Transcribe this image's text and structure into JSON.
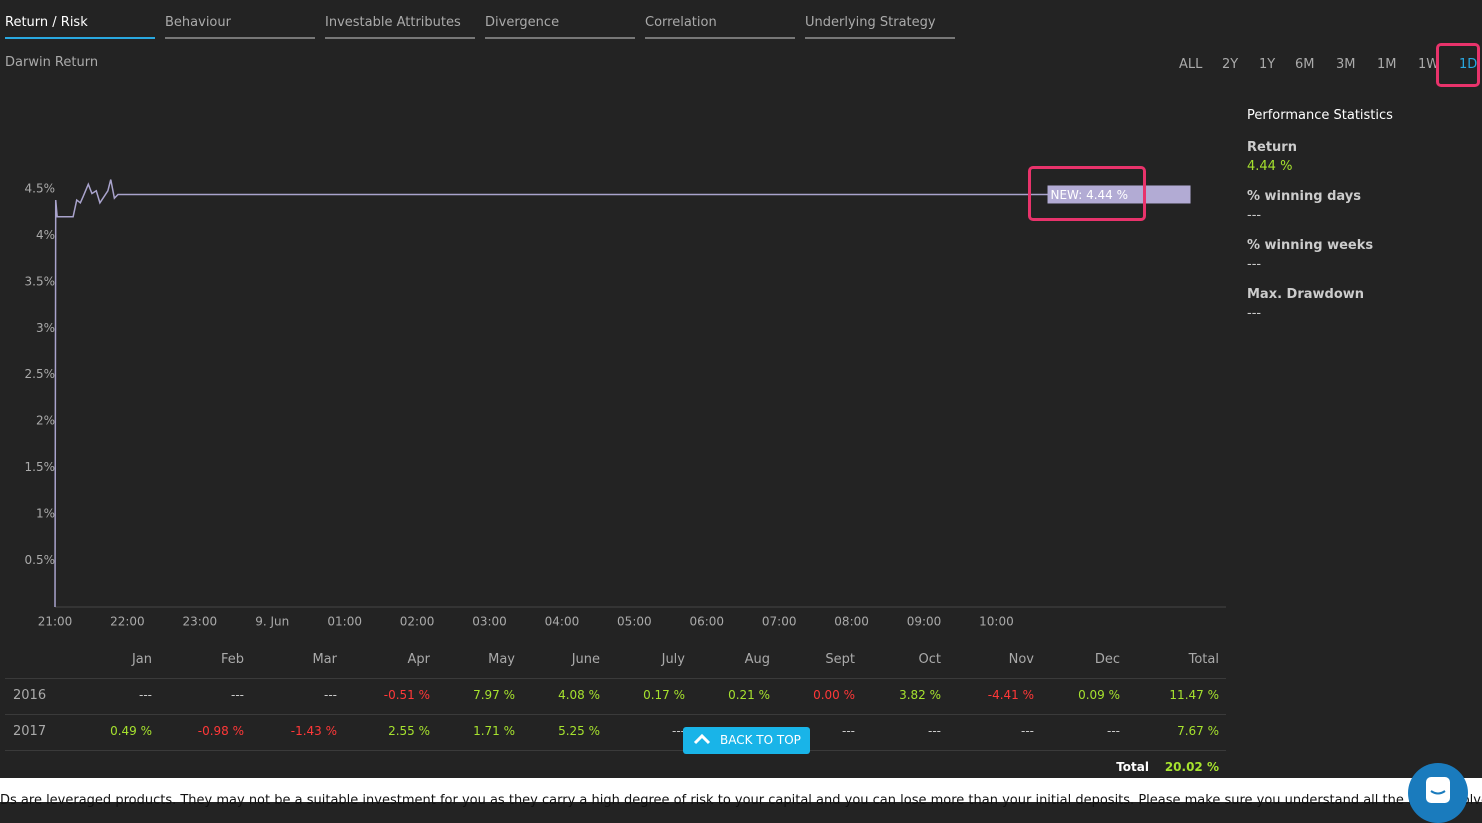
{
  "tabs": [
    {
      "label": "Return / Risk",
      "active": true
    },
    {
      "label": "Behaviour",
      "active": false
    },
    {
      "label": "Investable Attributes",
      "active": false
    },
    {
      "label": "Divergence",
      "active": false
    },
    {
      "label": "Correlation",
      "active": false
    },
    {
      "label": "Underlying Strategy",
      "active": false
    }
  ],
  "ranges": [
    {
      "label": "ALL",
      "active": false
    },
    {
      "label": "2Y",
      "active": false
    },
    {
      "label": "1Y",
      "active": false
    },
    {
      "label": "6M",
      "active": false
    },
    {
      "label": "3M",
      "active": false
    },
    {
      "label": "1M",
      "active": false
    },
    {
      "label": "1W",
      "active": false
    },
    {
      "label": "1D",
      "active": true
    }
  ],
  "chart_data": {
    "type": "line",
    "title": "Darwin Return",
    "color": "#a9a3cc",
    "x": [
      21.0,
      21.01,
      21.03,
      21.25,
      21.3,
      21.35,
      21.39,
      21.46,
      21.51,
      21.57,
      21.62,
      21.68,
      21.73,
      21.77,
      21.82,
      21.87,
      36.68
    ],
    "values": [
      0,
      4.38,
      4.2,
      4.2,
      4.38,
      4.35,
      4.42,
      4.55,
      4.45,
      4.48,
      4.35,
      4.42,
      4.48,
      4.6,
      4.4,
      4.44,
      4.44
    ],
    "xlim": [
      21,
      37.17
    ],
    "ylim": [
      0,
      5.5
    ],
    "xticks": [
      {
        "value": 21,
        "label": "21:00"
      },
      {
        "value": 22,
        "label": "22:00"
      },
      {
        "value": 23,
        "label": "23:00"
      },
      {
        "value": 24,
        "label": "9. Jun"
      },
      {
        "value": 25,
        "label": "01:00"
      },
      {
        "value": 26,
        "label": "02:00"
      },
      {
        "value": 27,
        "label": "03:00"
      },
      {
        "value": 28,
        "label": "04:00"
      },
      {
        "value": 29,
        "label": "05:00"
      },
      {
        "value": 30,
        "label": "06:00"
      },
      {
        "value": 31,
        "label": "07:00"
      },
      {
        "value": 32,
        "label": "08:00"
      },
      {
        "value": 33,
        "label": "09:00"
      },
      {
        "value": 34,
        "label": "10:00"
      }
    ],
    "yticks": [
      {
        "value": 0.5,
        "label": "0.5%"
      },
      {
        "value": 1,
        "label": "1%"
      },
      {
        "value": 1.5,
        "label": "1.5%"
      },
      {
        "value": 2,
        "label": "2%"
      },
      {
        "value": 2.5,
        "label": "2.5%"
      },
      {
        "value": 3,
        "label": "3%"
      },
      {
        "value": 3.5,
        "label": "3.5%"
      },
      {
        "value": 4,
        "label": "4%"
      },
      {
        "value": 4.5,
        "label": "4.5%"
      }
    ],
    "grid": false,
    "annotation": "NEW: 4.44 %"
  },
  "stats": {
    "title": "Performance Statistics",
    "items": [
      {
        "label": "Return",
        "value": "4.44 %",
        "color": "#a6e22e"
      },
      {
        "label": "% winning days",
        "value": "---",
        "color": "#cccccc"
      },
      {
        "label": "% winning weeks",
        "value": "---",
        "color": "#cccccc"
      },
      {
        "label": "Max. Drawdown",
        "value": "---",
        "color": "#cccccc"
      }
    ]
  },
  "table": {
    "header": [
      "Jan",
      "Feb",
      "Mar",
      "Apr",
      "May",
      "June",
      "July",
      "Aug",
      "Sept",
      "Oct",
      "Nov",
      "Dec",
      "Total"
    ],
    "rows": [
      {
        "year": "2016",
        "cells": [
          {
            "text": "---",
            "color": "#cccccc"
          },
          {
            "text": "---",
            "color": "#cccccc"
          },
          {
            "text": "---",
            "color": "#cccccc"
          },
          {
            "text": "-0.51 %",
            "color": "#ff3838"
          },
          {
            "text": "7.97 %",
            "color": "#a6e22e"
          },
          {
            "text": "4.08 %",
            "color": "#a6e22e"
          },
          {
            "text": "0.17 %",
            "color": "#a6e22e"
          },
          {
            "text": "0.21 %",
            "color": "#a6e22e"
          },
          {
            "text": "0.00 %",
            "color": "#ff3838"
          },
          {
            "text": "3.82 %",
            "color": "#a6e22e"
          },
          {
            "text": "-4.41 %",
            "color": "#ff3838"
          },
          {
            "text": "0.09 %",
            "color": "#a6e22e"
          },
          {
            "text": "11.47 %",
            "color": "#a6e22e"
          }
        ]
      },
      {
        "year": "2017",
        "cells": [
          {
            "text": "0.49 %",
            "color": "#a6e22e"
          },
          {
            "text": "-0.98 %",
            "color": "#ff3838"
          },
          {
            "text": "-1.43 %",
            "color": "#ff3838"
          },
          {
            "text": "2.55 %",
            "color": "#a6e22e"
          },
          {
            "text": "1.71 %",
            "color": "#a6e22e"
          },
          {
            "text": "5.25 %",
            "color": "#a6e22e"
          },
          {
            "text": "---",
            "color": "#cccccc"
          },
          {
            "text": "---",
            "color": "#cccccc"
          },
          {
            "text": "---",
            "color": "#cccccc"
          },
          {
            "text": "---",
            "color": "#cccccc"
          },
          {
            "text": "---",
            "color": "#cccccc"
          },
          {
            "text": "---",
            "color": "#cccccc"
          },
          {
            "text": "7.67 %",
            "color": "#a6e22e"
          }
        ]
      }
    ],
    "total_label": "Total",
    "total_value": "20.02 %"
  },
  "back_to_top": "BACK TO TOP",
  "disclaimer": "Ds are leveraged products. They may not be a suitable investment for you as they carry a high degree of risk to your capital and you can lose more than your initial deposits. Please make sure you understand all the risks involved."
}
